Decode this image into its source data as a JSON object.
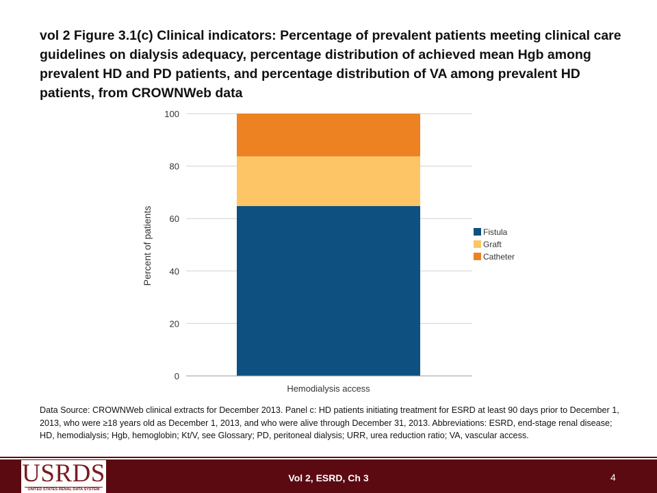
{
  "slide": {
    "title": "vol 2  Figure 3.1(c) Clinical indicators: Percentage of prevalent patients meeting clinical care guidelines on dialysis adequacy, percentage distribution of achieved mean Hgb among prevalent HD and PD patients, and percentage distribution of VA among prevalent HD patients, from CROWNWeb data",
    "source_note": "Data Source: CROWNWeb clinical extracts for December 2013. Panel c: HD patients initiating treatment for ESRD at least 90 days prior to December 1, 2013, who were ≥18 years old as December 1, 2013, and who were alive through December 31, 2013. Abbreviations: ESRD, end-stage renal disease; HD, hemodialysis; Hgb, hemoglobin; Kt/V, see Glossary; PD, peritoneal dialysis; URR, urea reduction ratio; VA, vascular access."
  },
  "footer": {
    "center_text": "Vol 2, ESRD, Ch 3",
    "page_number": "4",
    "logo_text": "USRDS",
    "logo_subtext": "UNITED STATES RENAL DATA SYSTEM"
  },
  "chart_data": {
    "type": "bar",
    "stacked": true,
    "categories": [
      "Hemodialysis access"
    ],
    "series": [
      {
        "name": "Fistula",
        "values": [
          64.8
        ],
        "color": "#0e5180"
      },
      {
        "name": "Graft",
        "values": [
          18.9
        ],
        "color": "#fdc566"
      },
      {
        "name": "Catheter",
        "values": [
          16.3
        ],
        "color": "#ec8222"
      }
    ],
    "xlabel": "Hemodialysis access",
    "ylabel": "Percent of patients",
    "ylim": [
      0,
      100
    ],
    "yticks": [
      0,
      20,
      40,
      60,
      80,
      100
    ],
    "grid": true,
    "legend_position": "right"
  }
}
